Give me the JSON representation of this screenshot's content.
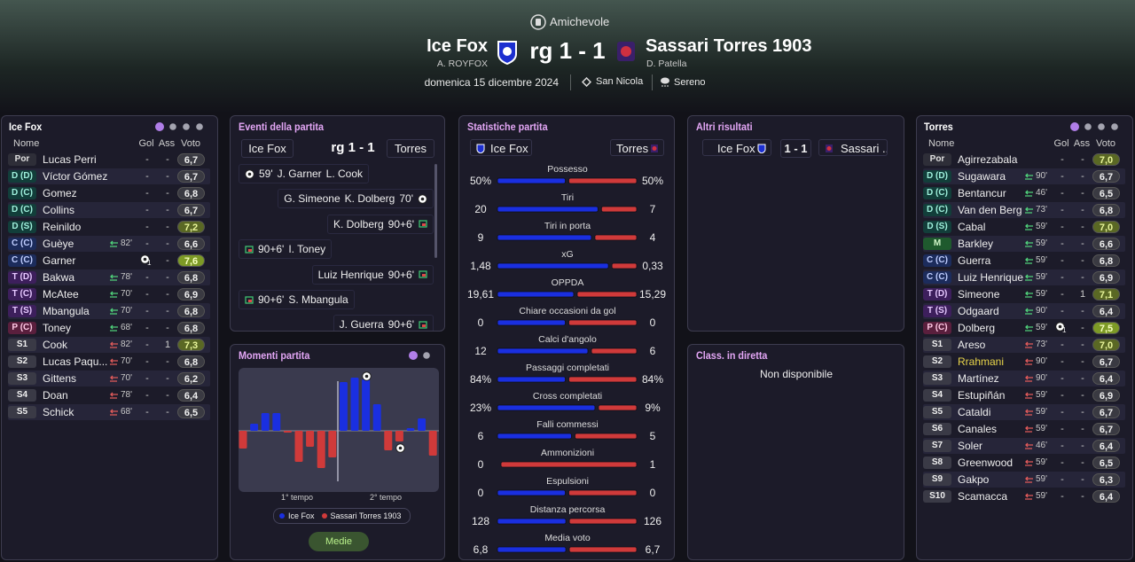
{
  "header": {
    "competition": "Amichevole",
    "home": {
      "name": "Ice Fox",
      "manager": "A. ROYFOX"
    },
    "score": "rg 1 - 1",
    "away": {
      "name": "Sassari Torres 1903",
      "manager": "D. Patella"
    },
    "date": "domenica 15 dicembre 2024",
    "stadium": "San Nicola",
    "weather": "Sereno"
  },
  "panels": {
    "events": "Eventi della partita",
    "moments": "Momenti partita",
    "stats": "Statistiche partita",
    "others": "Altri risultati",
    "table": "Class. in diretta"
  },
  "columns": [
    "Nome",
    "Gol",
    "Ass",
    "Voto"
  ],
  "lineups": [
    {
      "title": "Ice Fox",
      "players": [
        {
          "pos": "Por",
          "name": "Lucas Perri",
          "gol": "-",
          "ass": "-",
          "voto": "6,7"
        },
        {
          "pos": "D (D)",
          "name": "Víctor Gómez",
          "gol": "-",
          "ass": "-",
          "voto": "6,7"
        },
        {
          "pos": "D (C)",
          "name": "Gomez",
          "gol": "-",
          "ass": "-",
          "voto": "6,8"
        },
        {
          "pos": "D (C)",
          "name": "Collins",
          "gol": "-",
          "ass": "-",
          "voto": "6,7"
        },
        {
          "pos": "D (S)",
          "name": "Reinildo",
          "gol": "-",
          "ass": "-",
          "voto": "7,2"
        },
        {
          "pos": "C (C)",
          "name": "Guèye",
          "sub": "82'",
          "gol": "-",
          "ass": "-",
          "voto": "6,6"
        },
        {
          "pos": "C (C)",
          "name": "Garner",
          "gol": "1",
          "goal": true,
          "ass": "-",
          "voto": "7,6"
        },
        {
          "pos": "T (D)",
          "name": "Bakwa",
          "sub": "78'",
          "gol": "-",
          "ass": "-",
          "voto": "6,8"
        },
        {
          "pos": "T (C)",
          "name": "McAtee",
          "sub": "70'",
          "gol": "-",
          "ass": "-",
          "voto": "6,9"
        },
        {
          "pos": "T (S)",
          "name": "Mbangula",
          "sub": "70'",
          "gol": "-",
          "ass": "-",
          "voto": "6,8"
        },
        {
          "pos": "P (C)",
          "name": "Toney",
          "sub": "68'",
          "gol": "-",
          "ass": "-",
          "voto": "6,8"
        },
        {
          "pos": "S1",
          "name": "Cook",
          "sub": "82'",
          "gol": "-",
          "ass": "1",
          "voto": "7,3"
        },
        {
          "pos": "S2",
          "name": "Lucas Paqu...",
          "sub": "70'",
          "gol": "-",
          "ass": "-",
          "voto": "6,8"
        },
        {
          "pos": "S3",
          "name": "Gittens",
          "sub": "70'",
          "gol": "-",
          "ass": "-",
          "voto": "6,2"
        },
        {
          "pos": "S4",
          "name": "Doan",
          "sub": "78'",
          "gol": "-",
          "ass": "-",
          "voto": "6,4"
        },
        {
          "pos": "S5",
          "name": "Schick",
          "sub": "68'",
          "gol": "-",
          "ass": "-",
          "voto": "6,5"
        }
      ]
    },
    {
      "title": "Torres",
      "players": [
        {
          "pos": "Por",
          "name": "Agirrezabala",
          "gol": "-",
          "ass": "-",
          "voto": "7,0"
        },
        {
          "pos": "D (D)",
          "name": "Sugawara",
          "sub": "90'",
          "gol": "-",
          "ass": "-",
          "voto": "6,7"
        },
        {
          "pos": "D (C)",
          "name": "Bentancur",
          "sub": "46'",
          "gol": "-",
          "ass": "-",
          "voto": "6,5"
        },
        {
          "pos": "D (C)",
          "name": "Van den Berg",
          "sub": "73'",
          "gol": "-",
          "ass": "-",
          "voto": "6,8"
        },
        {
          "pos": "D (S)",
          "name": "Cabal",
          "sub": "59'",
          "gol": "-",
          "ass": "-",
          "voto": "7,0"
        },
        {
          "pos": "M",
          "name": "Barkley",
          "sub": "59'",
          "gol": "-",
          "ass": "-",
          "voto": "6,6"
        },
        {
          "pos": "C (C)",
          "name": "Guerra",
          "sub": "59'",
          "gol": "-",
          "ass": "-",
          "voto": "6,8"
        },
        {
          "pos": "C (C)",
          "name": "Luiz Henrique",
          "sub": "59'",
          "gol": "-",
          "ass": "-",
          "voto": "6,9"
        },
        {
          "pos": "T (D)",
          "name": "Simeone",
          "sub": "59'",
          "gol": "-",
          "ass": "1",
          "voto": "7,1"
        },
        {
          "pos": "T (S)",
          "name": "Odgaard",
          "sub": "90'",
          "gol": "-",
          "ass": "-",
          "voto": "6,4"
        },
        {
          "pos": "P (C)",
          "name": "Dolberg",
          "sub": "59'",
          "gol": "1",
          "goal": true,
          "ass": "-",
          "voto": "7,5"
        },
        {
          "pos": "S1",
          "name": "Areso",
          "sub": "73'",
          "gol": "-",
          "ass": "-",
          "voto": "7,0"
        },
        {
          "pos": "S2",
          "name": "Rrahmani",
          "highlight": true,
          "sub": "90'",
          "gol": "-",
          "ass": "-",
          "voto": "6,7"
        },
        {
          "pos": "S3",
          "name": "Martínez",
          "sub": "90'",
          "gol": "-",
          "ass": "-",
          "voto": "6,4"
        },
        {
          "pos": "S4",
          "name": "Estupiñán",
          "sub": "59'",
          "gol": "-",
          "ass": "-",
          "voto": "6,9"
        },
        {
          "pos": "S5",
          "name": "Cataldi",
          "sub": "59'",
          "gol": "-",
          "ass": "-",
          "voto": "6,7"
        },
        {
          "pos": "S6",
          "name": "Canales",
          "sub": "59'",
          "gol": "-",
          "ass": "-",
          "voto": "6,7"
        },
        {
          "pos": "S7",
          "name": "Soler",
          "sub": "46'",
          "gol": "-",
          "ass": "-",
          "voto": "6,4"
        },
        {
          "pos": "S8",
          "name": "Greenwood",
          "sub": "59'",
          "gol": "-",
          "ass": "-",
          "voto": "6,5"
        },
        {
          "pos": "S9",
          "name": "Gakpo",
          "sub": "59'",
          "gol": "-",
          "ass": "-",
          "voto": "6,3"
        },
        {
          "pos": "S10",
          "name": "Scamacca",
          "sub": "59'",
          "gol": "-",
          "ass": "-",
          "voto": "6,4"
        }
      ]
    }
  ],
  "events": [
    {
      "side": "home",
      "icon": "goal",
      "texts": [
        "59'",
        "J. Garner",
        "L. Cook"
      ]
    },
    {
      "side": "away",
      "icon": "goal",
      "texts": [
        "G. Simeone",
        "K. Dolberg",
        "70'"
      ]
    },
    {
      "side": "away",
      "icon": "sub",
      "texts": [
        "K. Dolberg",
        "90+6'"
      ]
    },
    {
      "side": "home",
      "icon": "sub",
      "texts": [
        "90+6'",
        "I. Toney"
      ]
    },
    {
      "side": "away",
      "icon": "sub",
      "texts": [
        "Luiz Henrique",
        "90+6'"
      ]
    },
    {
      "side": "home",
      "icon": "sub",
      "texts": [
        "90+6'",
        "S. Mbangula"
      ]
    },
    {
      "side": "away",
      "icon": "sub",
      "texts": [
        "J. Guerra",
        "90+6'"
      ]
    }
  ],
  "momentum": {
    "values": [
      -20,
      8,
      20,
      20,
      -2,
      -35,
      -18,
      -42,
      -30,
      55,
      60,
      58,
      30,
      -22,
      -12,
      3,
      14,
      -28
    ],
    "labels": [
      "1° tempo",
      "2° tempo"
    ],
    "button": "Medie"
  },
  "stats": [
    {
      "label": "Possesso",
      "values": [
        50,
        50
      ],
      "value_labels": [
        "50%",
        "50%"
      ]
    },
    {
      "label": "Tiri",
      "values": [
        20,
        7
      ]
    },
    {
      "label": "Tiri in porta",
      "values": [
        9,
        4
      ]
    },
    {
      "label": "xG",
      "values": [
        1.48,
        0.33
      ],
      "value_labels": [
        "1,48",
        "0,33"
      ]
    },
    {
      "label": "OPPDA",
      "values": [
        19.61,
        15.29
      ],
      "value_labels": [
        "19,61",
        "15,29"
      ]
    },
    {
      "label": "Chiare occasioni da gol",
      "values": [
        0,
        0
      ]
    },
    {
      "label": "Calci d'angolo",
      "values": [
        12,
        6
      ]
    },
    {
      "label": "Passaggi completati",
      "values": [
        84,
        84
      ],
      "value_labels": [
        "84%",
        "84%"
      ]
    },
    {
      "label": "Cross completati",
      "values": [
        23,
        9
      ],
      "value_labels": [
        "23%",
        "9%"
      ]
    },
    {
      "label": "Falli commessi",
      "values": [
        6,
        5
      ]
    },
    {
      "label": "Ammonizioni",
      "values": [
        0,
        1
      ]
    },
    {
      "label": "Espulsioni",
      "values": [
        0,
        0
      ]
    },
    {
      "label": "Distanza percorsa",
      "values": [
        128,
        126
      ]
    },
    {
      "label": "Media voto",
      "values": [
        6.8,
        6.7
      ],
      "value_labels": [
        "6,8",
        "6,7"
      ]
    }
  ],
  "other_results": [
    {
      "home": "Ice Fox",
      "score": "1 - 1",
      "away": "Sassari ..."
    }
  ],
  "live_table": "Non disponibile"
}
